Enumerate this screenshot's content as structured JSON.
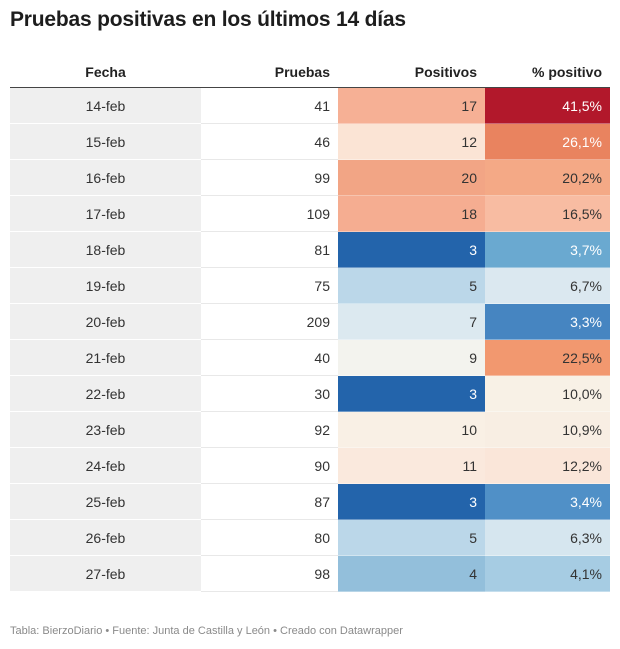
{
  "title": "Pruebas positivas en los últimos 14 días",
  "footer": "Tabla: BierzoDiario • Fuente: Junta de Castilla y León • Creado con Datawrapper",
  "chart_data": {
    "type": "table",
    "title": "Pruebas positivas en los últimos 14 días",
    "columns": [
      "Fecha",
      "Pruebas",
      "Positivos",
      "% positivo"
    ],
    "rows": [
      {
        "fecha": "14-feb",
        "pruebas": "41",
        "positivos": "17",
        "pct": "41,5%",
        "pos_color": "#f6b095",
        "pct_color": "#b2182b"
      },
      {
        "fecha": "15-feb",
        "pruebas": "46",
        "positivos": "12",
        "pct": "26,1%",
        "pos_color": "#fbe4d5",
        "pct_color": "#e9835f"
      },
      {
        "fecha": "16-feb",
        "pruebas": "99",
        "positivos": "20",
        "pct": "20,2%",
        "pos_color": "#f2a585",
        "pct_color": "#f4a986"
      },
      {
        "fecha": "17-feb",
        "pruebas": "109",
        "positivos": "18",
        "pct": "16,5%",
        "pos_color": "#f5ad91",
        "pct_color": "#f8bca2"
      },
      {
        "fecha": "18-feb",
        "pruebas": "81",
        "positivos": "3",
        "pct": "3,7%",
        "pos_color": "#2364ab",
        "pct_color": "#6aa9d0"
      },
      {
        "fecha": "19-feb",
        "pruebas": "75",
        "positivos": "5",
        "pct": "6,7%",
        "pos_color": "#bbd7e9",
        "pct_color": "#dbe8f0"
      },
      {
        "fecha": "20-feb",
        "pruebas": "209",
        "positivos": "7",
        "pct": "3,3%",
        "pos_color": "#dce9f0",
        "pct_color": "#4685c1"
      },
      {
        "fecha": "21-feb",
        "pruebas": "40",
        "positivos": "9",
        "pct": "22,5%",
        "pos_color": "#f3f3ee",
        "pct_color": "#f2986f"
      },
      {
        "fecha": "22-feb",
        "pruebas": "30",
        "positivos": "3",
        "pct": "10,0%",
        "pos_color": "#2364ab",
        "pct_color": "#f8f1e6"
      },
      {
        "fecha": "23-feb",
        "pruebas": "92",
        "positivos": "10",
        "pct": "10,9%",
        "pos_color": "#f9f0e5",
        "pct_color": "#f8eee3"
      },
      {
        "fecha": "24-feb",
        "pruebas": "90",
        "positivos": "11",
        "pct": "12,2%",
        "pos_color": "#fae9dd",
        "pct_color": "#fae6d9"
      },
      {
        "fecha": "25-feb",
        "pruebas": "87",
        "positivos": "3",
        "pct": "3,4%",
        "pos_color": "#2364ab",
        "pct_color": "#5090c7"
      },
      {
        "fecha": "26-feb",
        "pruebas": "80",
        "positivos": "5",
        "pct": "6,3%",
        "pos_color": "#bbd7e9",
        "pct_color": "#d6e6ef"
      },
      {
        "fecha": "27-feb",
        "pruebas": "98",
        "positivos": "4",
        "pct": "4,1%",
        "pos_color": "#93bfdb",
        "pct_color": "#a6cce3"
      }
    ]
  }
}
